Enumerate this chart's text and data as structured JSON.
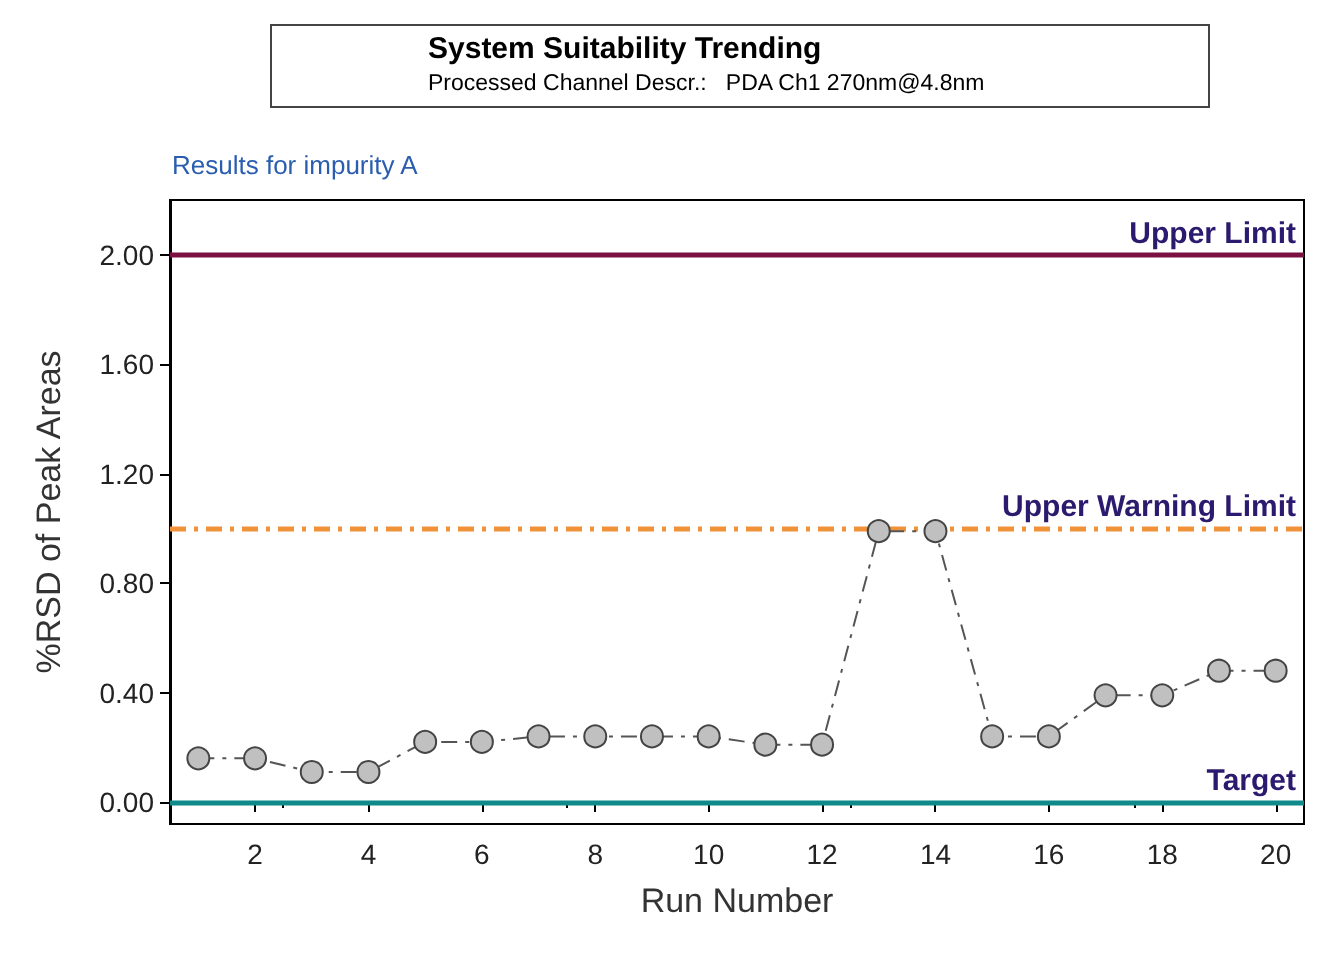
{
  "chart_data": {
    "type": "line",
    "title": "System Suitability Trending",
    "subtitle": "Processed Channel Descr.:   PDA Ch1 270nm@4.8nm",
    "annotations": [
      "Results for impurity A"
    ],
    "xlabel": "Run Number",
    "ylabel": "%RSD of Peak Areas",
    "x": [
      1,
      2,
      3,
      4,
      5,
      6,
      7,
      8,
      9,
      10,
      11,
      12,
      13,
      14,
      15,
      16,
      17,
      18,
      19,
      20
    ],
    "series": [
      {
        "color": "#c0c0c0",
        "values": [
          0.16,
          0.16,
          0.11,
          0.11,
          0.22,
          0.22,
          0.24,
          0.24,
          0.24,
          0.24,
          0.21,
          0.21,
          0.99,
          0.99,
          0.24,
          0.24,
          0.39,
          0.39,
          0.48,
          0.48
        ]
      }
    ],
    "xlim": [
      0.5,
      20.5
    ],
    "xticks": [
      2,
      4,
      6,
      8,
      10,
      12,
      14,
      16,
      18,
      20
    ],
    "ylim": [
      -0.08,
      2.2
    ],
    "yticks": [
      {
        "value": 0,
        "label": "0.00"
      },
      {
        "value": 0.4,
        "label": "0.40"
      },
      {
        "value": 0.8,
        "label": "0.80"
      },
      {
        "value": 1.2,
        "label": "1.20"
      },
      {
        "value": 1.6,
        "label": "1.60"
      },
      {
        "value": 2,
        "label": "2.00"
      }
    ],
    "ref_lines": [
      {
        "axis": "y",
        "value": 2,
        "label": "Upper Limit",
        "color": "#7b1042",
        "line_style": "solid"
      },
      {
        "axis": "y",
        "value": 1,
        "label": "Upper Warning Limit",
        "color": "#f0923a",
        "line_style": "dashed"
      },
      {
        "axis": "y",
        "value": 0,
        "label": "Target",
        "color": "#0f8a8a",
        "line_style": "solid"
      }
    ],
    "grid": false,
    "marker": "circle",
    "line_style": "dashed"
  }
}
